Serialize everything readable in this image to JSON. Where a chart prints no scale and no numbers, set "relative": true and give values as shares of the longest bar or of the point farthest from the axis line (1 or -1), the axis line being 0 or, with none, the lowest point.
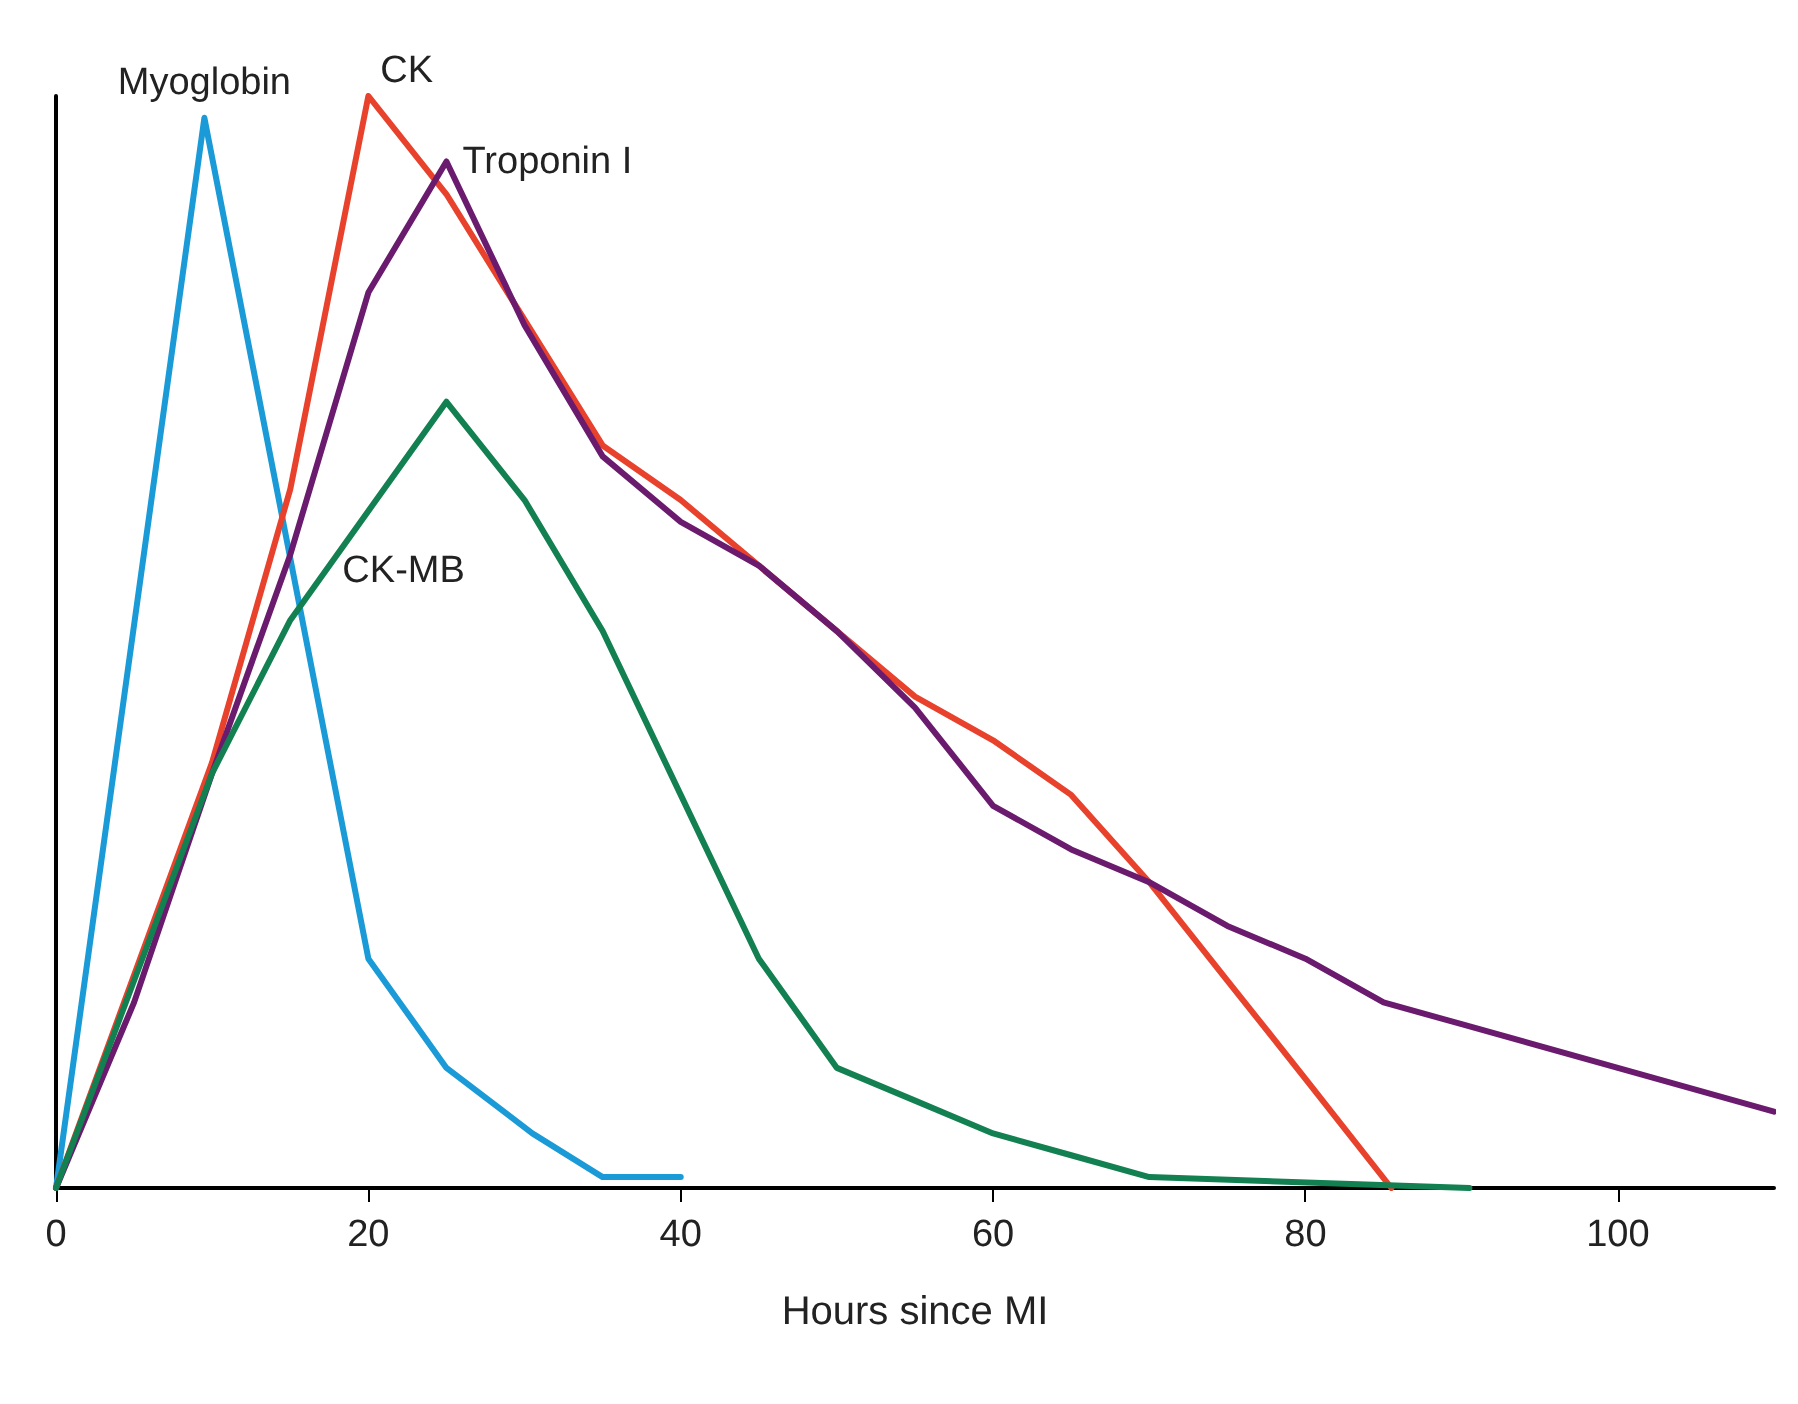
{
  "chart_data": {
    "type": "line",
    "xlabel": "Hours since MI",
    "relative": true,
    "xlim": [
      0,
      110
    ],
    "xticks": [
      0,
      20,
      40,
      60,
      80,
      100
    ],
    "grid": false,
    "legend": false,
    "marker": "none",
    "line_style": "solid",
    "series": [
      {
        "name": "Myoglobin",
        "color": "#1a9ad6",
        "x": [
          0,
          9.5,
          20,
          25,
          30.5,
          35,
          40
        ],
        "values": [
          0,
          0.98,
          0.21,
          0.11,
          0.05,
          0.01,
          0.01
        ]
      },
      {
        "name": "CK",
        "color": "#e8412c",
        "x": [
          0,
          10,
          15,
          20,
          25,
          35,
          40,
          45,
          50,
          55,
          60,
          65,
          70,
          75,
          80,
          85.5
        ],
        "values": [
          0,
          0.39,
          0.64,
          1,
          0.91,
          0.68,
          0.63,
          0.57,
          0.51,
          0.45,
          0.41,
          0.36,
          0.28,
          0.19,
          0.1,
          0
        ]
      },
      {
        "name": "Troponin I",
        "color": "#6a1b6e",
        "x": [
          0,
          5,
          10,
          15,
          20,
          25,
          30,
          35,
          40,
          45,
          50,
          55,
          60,
          65,
          70,
          75,
          80,
          85,
          90,
          100,
          110
        ],
        "values": [
          0,
          0.17,
          0.38,
          0.58,
          0.82,
          0.94,
          0.79,
          0.67,
          0.61,
          0.57,
          0.51,
          0.44,
          0.35,
          0.31,
          0.28,
          0.24,
          0.21,
          0.17,
          0.15,
          0.11,
          0.07
        ]
      },
      {
        "name": "CK-MB",
        "color": "#128050",
        "x": [
          0,
          10,
          15,
          20,
          25,
          30,
          35,
          40,
          45,
          50,
          55,
          60,
          65,
          70,
          90.5
        ],
        "values": [
          0,
          0.38,
          0.52,
          0.62,
          0.72,
          0.63,
          0.51,
          0.36,
          0.21,
          0.11,
          0.08,
          0.05,
          0.03,
          0.01,
          0
        ]
      }
    ]
  }
}
